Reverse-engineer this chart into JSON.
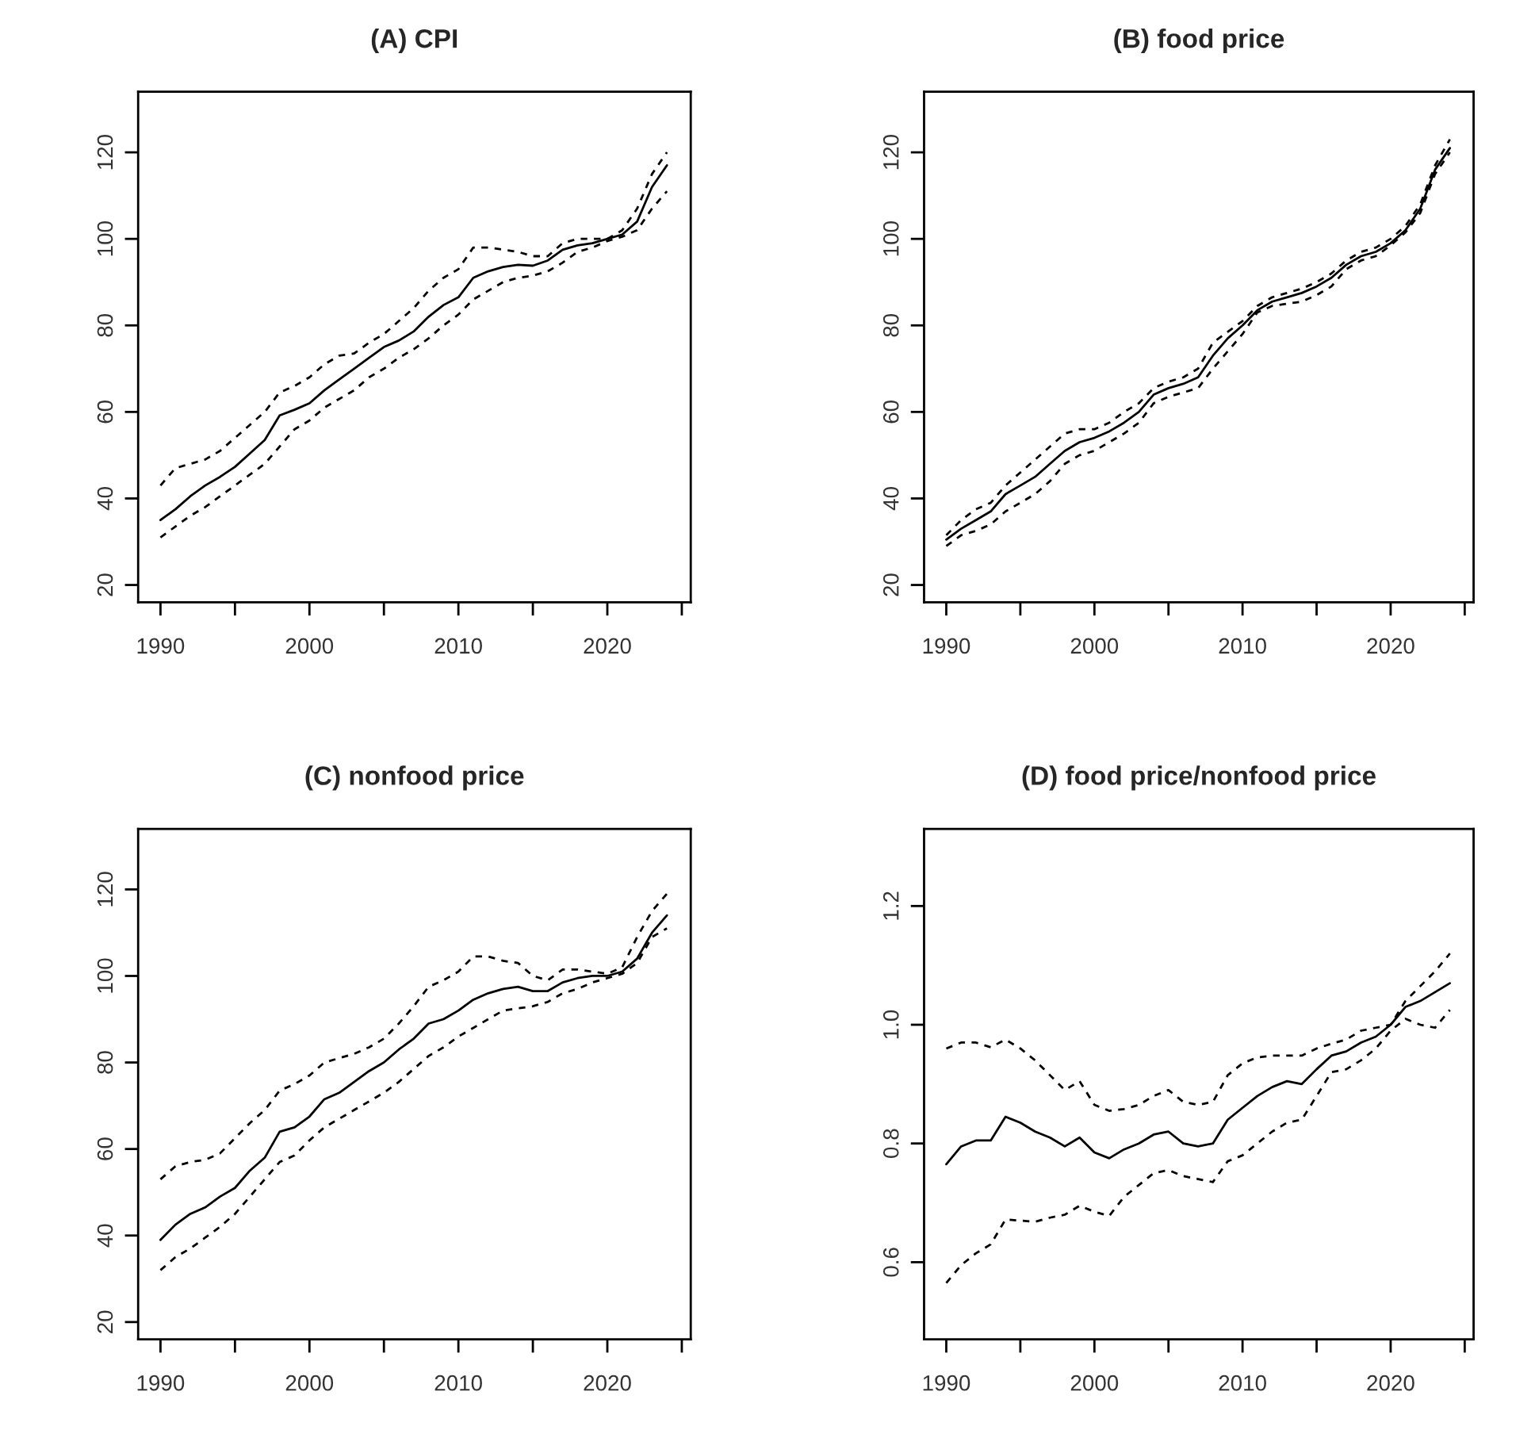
{
  "chart_data": [
    {
      "type": "line",
      "title": "(A) CPI",
      "x": [
        1990,
        1991,
        1992,
        1993,
        1994,
        1995,
        1996,
        1997,
        1998,
        1999,
        2000,
        2001,
        2002,
        2003,
        2004,
        2005,
        2006,
        2007,
        2008,
        2009,
        2010,
        2011,
        2012,
        2013,
        2014,
        2015,
        2016,
        2017,
        2018,
        2019,
        2020,
        2021,
        2022,
        2023,
        2024
      ],
      "series": [
        {
          "color": "#000000",
          "line_style": "solid",
          "values": [
            35,
            37.5,
            40.5,
            43,
            45,
            47.3,
            50.4,
            53.5,
            59.2,
            60.5,
            62,
            65,
            67.5,
            70,
            72.5,
            75,
            76.5,
            78.6,
            82,
            84.7,
            86.5,
            91,
            92.5,
            93.5,
            94,
            93.8,
            95,
            97.5,
            98.5,
            99,
            100,
            101,
            104,
            112,
            117
          ]
        },
        {
          "color": "#000000",
          "line_style": "dashed",
          "values": [
            43,
            47,
            48,
            49,
            51,
            54,
            57,
            60,
            64.5,
            66,
            68,
            71,
            73,
            73.5,
            76,
            78,
            81,
            84,
            88,
            91,
            93,
            98,
            98,
            97.5,
            97,
            96,
            96,
            99,
            100,
            100,
            100,
            102,
            107,
            115,
            120
          ]
        },
        {
          "color": "#000000",
          "line_style": "dashed",
          "values": [
            31,
            33.5,
            36,
            38,
            40.5,
            43,
            45.5,
            48,
            52,
            56,
            58,
            61,
            63,
            65,
            68,
            70,
            72.5,
            74.5,
            77,
            80,
            82.5,
            86,
            88,
            90,
            91,
            91.5,
            92.5,
            94.5,
            97,
            98,
            99.5,
            100.5,
            102,
            107,
            111
          ]
        }
      ],
      "xlim": [
        1988.5,
        2025.6
      ],
      "ylim": [
        16,
        134
      ],
      "xticks": [
        1990,
        {
          "value": 1995,
          "label": null
        },
        2000,
        {
          "value": 2005,
          "label": null
        },
        2010,
        {
          "value": 2015,
          "label": null
        },
        2020,
        {
          "value": 2025,
          "label": null
        }
      ],
      "yticks": [
        20,
        40,
        60,
        80,
        100,
        120
      ]
    },
    {
      "type": "line",
      "title": "(B) food price",
      "x": [
        1990,
        1991,
        1992,
        1993,
        1994,
        1995,
        1996,
        1997,
        1998,
        1999,
        2000,
        2001,
        2002,
        2003,
        2004,
        2005,
        2006,
        2007,
        2008,
        2009,
        2010,
        2011,
        2012,
        2013,
        2014,
        2015,
        2016,
        2017,
        2018,
        2019,
        2020,
        2021,
        2022,
        2023,
        2024
      ],
      "series": [
        {
          "color": "#000000",
          "line_style": "solid",
          "values": [
            30.5,
            33,
            35,
            37,
            41,
            43,
            45,
            48,
            51,
            53,
            54,
            55.5,
            57.5,
            60,
            64,
            65.5,
            66.5,
            68,
            73,
            77,
            80,
            83.5,
            85.5,
            86.5,
            87.5,
            89,
            91,
            94,
            96,
            97,
            99,
            102,
            107,
            116,
            121
          ]
        },
        {
          "color": "#000000",
          "line_style": "dashed",
          "values": [
            31.5,
            35,
            37.5,
            39,
            43,
            46,
            49,
            52,
            55,
            56,
            56,
            57.5,
            60,
            62,
            65.5,
            67,
            68,
            70,
            76,
            78.5,
            81,
            84.5,
            86.5,
            87.5,
            88.5,
            90,
            92,
            95,
            97,
            98,
            100,
            103,
            108,
            117,
            123
          ]
        },
        {
          "color": "#000000",
          "line_style": "dashed",
          "values": [
            29,
            31.5,
            32.5,
            34,
            37,
            39,
            41,
            44,
            48,
            50,
            51,
            53,
            55,
            57.5,
            62,
            63.5,
            64.5,
            65.5,
            70,
            74,
            78,
            83,
            84.5,
            85,
            85.5,
            87,
            89,
            93,
            95,
            96,
            98.5,
            101.5,
            106,
            115,
            120
          ]
        }
      ],
      "xlim": [
        1988.5,
        2025.6
      ],
      "ylim": [
        16,
        134
      ],
      "xticks": [
        1990,
        {
          "value": 1995,
          "label": null
        },
        2000,
        {
          "value": 2005,
          "label": null
        },
        2010,
        {
          "value": 2015,
          "label": null
        },
        2020,
        {
          "value": 2025,
          "label": null
        }
      ],
      "yticks": [
        20,
        40,
        60,
        80,
        100,
        120
      ]
    },
    {
      "type": "line",
      "title": "(C) nonfood price",
      "x": [
        1990,
        1991,
        1992,
        1993,
        1994,
        1995,
        1996,
        1997,
        1998,
        1999,
        2000,
        2001,
        2002,
        2003,
        2004,
        2005,
        2006,
        2007,
        2008,
        2009,
        2010,
        2011,
        2012,
        2013,
        2014,
        2015,
        2016,
        2017,
        2018,
        2019,
        2020,
        2021,
        2022,
        2023,
        2024
      ],
      "series": [
        {
          "color": "#000000",
          "line_style": "solid",
          "values": [
            39,
            42.5,
            45,
            46.5,
            49,
            51,
            55,
            58,
            64,
            65,
            67.5,
            71.5,
            73,
            75.5,
            78,
            80,
            83,
            85.5,
            89,
            90,
            92,
            94.5,
            96,
            97,
            97.5,
            96.5,
            96.5,
            98.5,
            99.5,
            100,
            100,
            101,
            104,
            110,
            114
          ]
        },
        {
          "color": "#000000",
          "line_style": "dashed",
          "values": [
            53,
            56,
            57,
            57.5,
            59,
            62.5,
            66,
            69,
            73.5,
            75,
            77,
            80,
            81,
            82,
            83.5,
            85.5,
            89,
            93,
            97.5,
            99,
            101,
            104.5,
            104.5,
            103.5,
            103,
            100,
            99,
            101.5,
            101.5,
            101,
            100.5,
            102,
            109,
            115,
            119
          ]
        },
        {
          "color": "#000000",
          "line_style": "dashed",
          "values": [
            32,
            35,
            37,
            39.5,
            42,
            45,
            49,
            53,
            57,
            58.5,
            62,
            65,
            67,
            69,
            71,
            73,
            75.5,
            78.5,
            81.5,
            83.5,
            86,
            88,
            90,
            92,
            92.5,
            93,
            94,
            96,
            97,
            98.5,
            99.5,
            100.5,
            103,
            109,
            111
          ]
        }
      ],
      "xlim": [
        1988.5,
        2025.6
      ],
      "ylim": [
        16,
        134
      ],
      "xticks": [
        1990,
        {
          "value": 1995,
          "label": null
        },
        2000,
        {
          "value": 2005,
          "label": null
        },
        2010,
        {
          "value": 2015,
          "label": null
        },
        2020,
        {
          "value": 2025,
          "label": null
        }
      ],
      "yticks": [
        20,
        40,
        60,
        80,
        100,
        120
      ]
    },
    {
      "type": "line",
      "title": "(D) food price/nonfood price",
      "x": [
        1990,
        1991,
        1992,
        1993,
        1994,
        1995,
        1996,
        1997,
        1998,
        1999,
        2000,
        2001,
        2002,
        2003,
        2004,
        2005,
        2006,
        2007,
        2008,
        2009,
        2010,
        2011,
        2012,
        2013,
        2014,
        2015,
        2016,
        2017,
        2018,
        2019,
        2020,
        2021,
        2022,
        2023,
        2024
      ],
      "series": [
        {
          "color": "#000000",
          "line_style": "solid",
          "values": [
            0.765,
            0.795,
            0.805,
            0.805,
            0.845,
            0.835,
            0.82,
            0.81,
            0.795,
            0.81,
            0.785,
            0.775,
            0.79,
            0.8,
            0.815,
            0.82,
            0.8,
            0.795,
            0.8,
            0.84,
            0.86,
            0.88,
            0.895,
            0.905,
            0.9,
            0.925,
            0.948,
            0.955,
            0.97,
            0.98,
            1.0,
            1.03,
            1.04,
            1.055,
            1.07
          ]
        },
        {
          "color": "#000000",
          "line_style": "dashed",
          "values": [
            0.96,
            0.97,
            0.97,
            0.962,
            0.975,
            0.96,
            0.94,
            0.915,
            0.89,
            0.905,
            0.865,
            0.855,
            0.858,
            0.865,
            0.88,
            0.89,
            0.87,
            0.865,
            0.87,
            0.915,
            0.935,
            0.945,
            0.948,
            0.948,
            0.948,
            0.96,
            0.968,
            0.975,
            0.99,
            0.995,
            1.0,
            1.04,
            1.065,
            1.09,
            1.12
          ]
        },
        {
          "color": "#000000",
          "line_style": "dashed",
          "values": [
            0.565,
            0.595,
            0.615,
            0.63,
            0.672,
            0.67,
            0.668,
            0.675,
            0.68,
            0.695,
            0.685,
            0.678,
            0.71,
            0.73,
            0.75,
            0.755,
            0.745,
            0.74,
            0.735,
            0.77,
            0.78,
            0.8,
            0.82,
            0.835,
            0.84,
            0.88,
            0.92,
            0.925,
            0.94,
            0.96,
            0.99,
            1.01,
            1.0,
            0.995,
            1.025
          ]
        }
      ],
      "xlim": [
        1988.5,
        2025.6
      ],
      "ylim": [
        0.47,
        1.33
      ],
      "xticks": [
        1990,
        {
          "value": 1995,
          "label": null
        },
        2000,
        {
          "value": 2005,
          "label": null
        },
        2010,
        {
          "value": 2015,
          "label": null
        },
        2020,
        {
          "value": 2025,
          "label": null
        }
      ],
      "yticks": [
        0.6,
        0.8,
        {
          "value": 1,
          "label": "1.0"
        },
        1.2
      ]
    }
  ]
}
